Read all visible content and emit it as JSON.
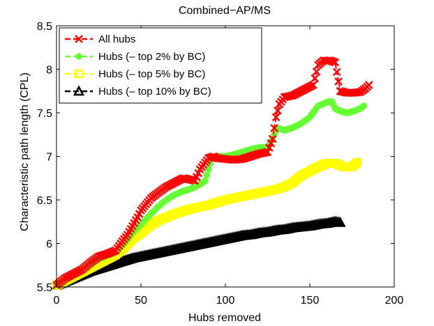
{
  "chart_data": {
    "type": "line",
    "title": "Combined−AP/MS",
    "xlabel": "Hubs removed",
    "ylabel": "Characteristic path length (CPL)",
    "xlim": [
      0,
      200
    ],
    "ylim": [
      5.5,
      8.5
    ],
    "xticks": [
      0,
      50,
      100,
      150,
      200
    ],
    "yticks": [
      5.5,
      6,
      6.5,
      7,
      7.5,
      8,
      8.5
    ],
    "xtick_labels": [
      "0",
      "50",
      "100",
      "150",
      "200"
    ],
    "ytick_labels": [
      "5.5",
      "6",
      "6.5",
      "7",
      "7.5",
      "8",
      "8.5"
    ],
    "grid": false,
    "legend_position": "top-left",
    "series": [
      {
        "name": "All hubs",
        "color": "#ff0000",
        "marker": "x",
        "line_style": "dashed",
        "x": [
          0,
          5,
          10,
          15,
          20,
          25,
          30,
          35,
          38,
          42,
          45,
          48,
          50,
          53,
          56,
          60,
          65,
          70,
          75,
          80,
          82,
          85,
          88,
          90,
          93,
          95,
          100,
          105,
          110,
          115,
          120,
          125,
          128,
          130,
          132,
          135,
          140,
          145,
          148,
          152,
          155,
          158,
          162,
          165,
          168,
          172,
          176,
          180,
          183,
          185
        ],
        "values": [
          5.52,
          5.6,
          5.65,
          5.7,
          5.78,
          5.85,
          5.88,
          5.92,
          6.0,
          6.1,
          6.2,
          6.3,
          6.38,
          6.45,
          6.52,
          6.58,
          6.65,
          6.7,
          6.75,
          6.73,
          6.72,
          6.85,
          6.93,
          6.98,
          7.0,
          6.98,
          6.97,
          6.96,
          6.97,
          7.0,
          7.03,
          7.05,
          7.2,
          7.45,
          7.6,
          7.68,
          7.7,
          7.75,
          7.78,
          7.82,
          8.05,
          8.1,
          8.1,
          8.08,
          7.75,
          7.73,
          7.73,
          7.74,
          7.78,
          7.82
        ]
      },
      {
        "name": "Hubs (– top 2% by BC)",
        "color": "#66ff33",
        "marker": "*",
        "line_style": "dashed",
        "x": [
          0,
          5,
          10,
          15,
          20,
          25,
          30,
          35,
          40,
          45,
          50,
          55,
          60,
          65,
          70,
          75,
          80,
          85,
          88,
          90,
          92,
          95,
          100,
          105,
          110,
          115,
          120,
          125,
          128,
          130,
          132,
          135,
          140,
          145,
          150,
          155,
          160,
          163,
          165,
          168,
          172,
          176,
          180,
          182
        ],
        "values": [
          5.52,
          5.58,
          5.64,
          5.7,
          5.76,
          5.82,
          5.86,
          5.9,
          6.0,
          6.12,
          6.22,
          6.32,
          6.42,
          6.5,
          6.56,
          6.6,
          6.63,
          6.68,
          6.72,
          6.85,
          6.98,
          7.0,
          7.0,
          7.02,
          7.05,
          7.08,
          7.1,
          7.1,
          7.2,
          7.3,
          7.32,
          7.3,
          7.33,
          7.38,
          7.45,
          7.58,
          7.62,
          7.63,
          7.55,
          7.52,
          7.5,
          7.52,
          7.55,
          7.58
        ]
      },
      {
        "name": "Hubs (– top 5% by BC)",
        "color": "#ffff00",
        "marker": "square",
        "line_style": "dashed",
        "x": [
          0,
          5,
          10,
          15,
          20,
          25,
          30,
          35,
          40,
          45,
          50,
          55,
          60,
          65,
          70,
          75,
          80,
          85,
          90,
          95,
          100,
          105,
          110,
          115,
          120,
          125,
          130,
          135,
          140,
          145,
          150,
          155,
          160,
          165,
          170,
          175,
          178
        ],
        "values": [
          5.52,
          5.57,
          5.62,
          5.67,
          5.72,
          5.77,
          5.82,
          5.87,
          5.95,
          6.05,
          6.12,
          6.2,
          6.26,
          6.3,
          6.34,
          6.37,
          6.4,
          6.42,
          6.44,
          6.47,
          6.5,
          6.52,
          6.54,
          6.56,
          6.58,
          6.6,
          6.62,
          6.65,
          6.7,
          6.78,
          6.83,
          6.88,
          6.92,
          6.92,
          6.88,
          6.88,
          6.93
        ]
      },
      {
        "name": "Hubs (– top 10% by BC)",
        "color": "#000000",
        "marker": "triangle",
        "line_style": "dashed",
        "x": [
          0,
          5,
          10,
          15,
          20,
          25,
          30,
          35,
          40,
          45,
          50,
          55,
          60,
          65,
          70,
          75,
          80,
          85,
          90,
          95,
          100,
          105,
          110,
          115,
          120,
          125,
          130,
          135,
          140,
          145,
          150,
          155,
          160,
          165,
          168
        ],
        "values": [
          5.52,
          5.56,
          5.6,
          5.64,
          5.68,
          5.71,
          5.74,
          5.77,
          5.8,
          5.83,
          5.85,
          5.87,
          5.89,
          5.91,
          5.93,
          5.95,
          5.97,
          5.99,
          6.01,
          6.03,
          6.05,
          6.07,
          6.09,
          6.1,
          6.12,
          6.13,
          6.15,
          6.16,
          6.18,
          6.19,
          6.2,
          6.22,
          6.23,
          6.25,
          6.24
        ]
      }
    ]
  }
}
